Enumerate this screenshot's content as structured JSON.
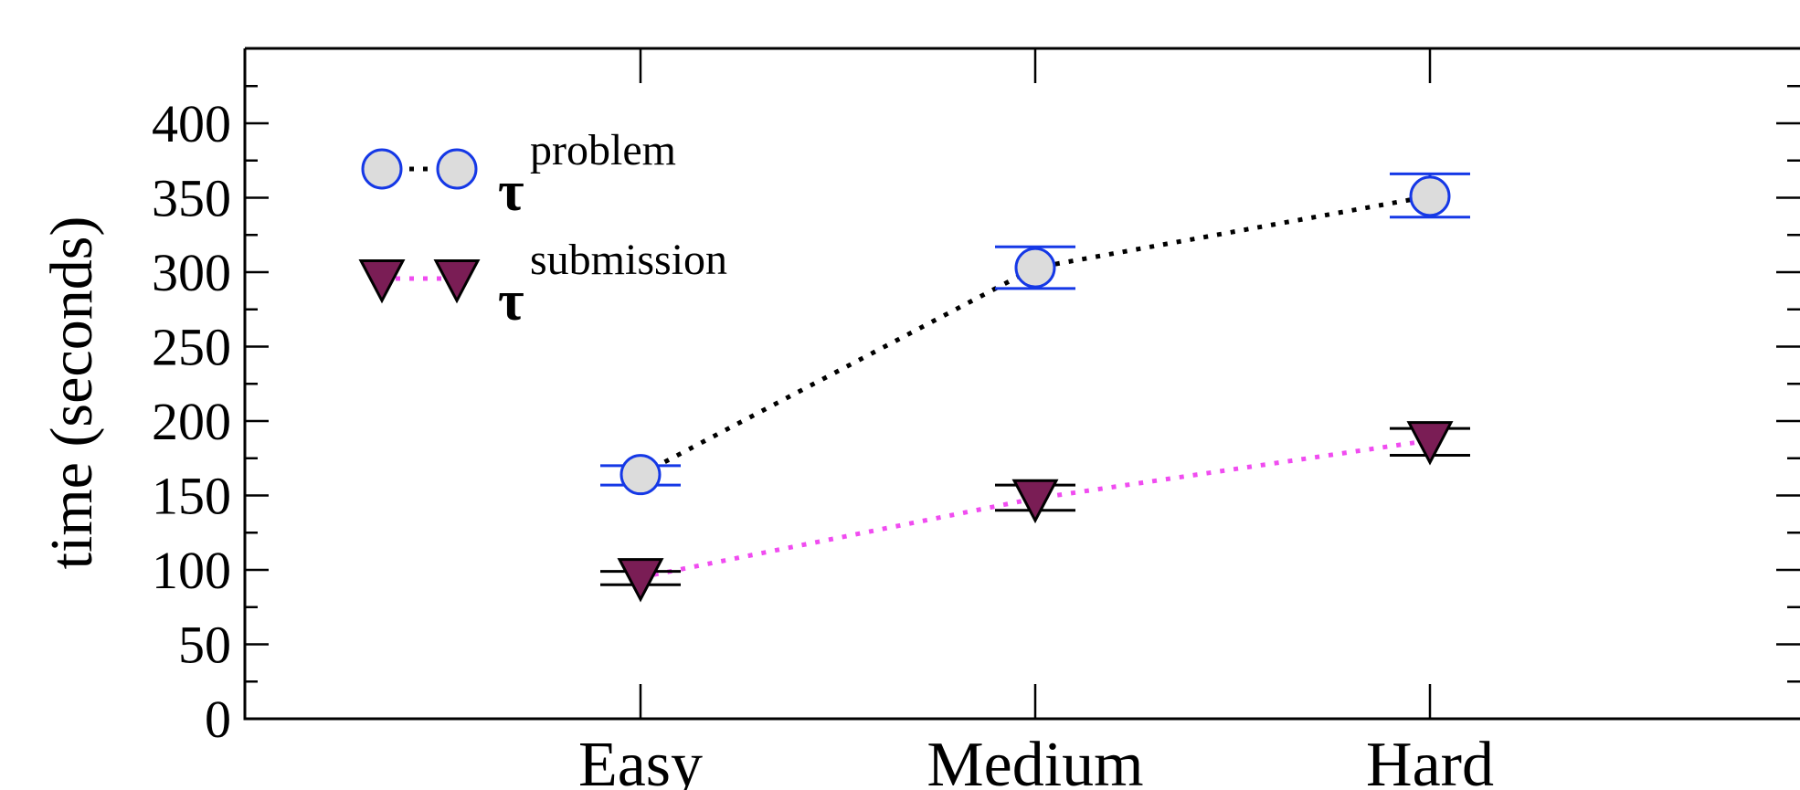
{
  "chart_data": {
    "type": "line",
    "categories": [
      "Easy",
      "Medium",
      "Hard"
    ],
    "ylabel": "time (seconds)",
    "xlabel": "",
    "title": "",
    "ylim": [
      0,
      450
    ],
    "yticks": [
      0,
      50,
      100,
      150,
      200,
      250,
      300,
      350,
      400
    ],
    "grid": false,
    "legend_position": "top-left",
    "series": [
      {
        "name": "problem",
        "legend_symbol": "τ",
        "values": [
          164,
          303,
          351
        ],
        "error_low": [
          157,
          289,
          337
        ],
        "error_high": [
          170,
          317,
          366
        ],
        "marker": "circle",
        "marker_fill": "#dcdcdc",
        "marker_edge": "#1538e6",
        "errorbar_color": "#1538e6",
        "line_color": "#000000",
        "line_style": "dotted"
      },
      {
        "name": "submission",
        "legend_symbol": "τ",
        "values": [
          95,
          148,
          187
        ],
        "error_low": [
          90,
          140,
          177
        ],
        "error_high": [
          99,
          157,
          195
        ],
        "marker": "triangle-down",
        "marker_fill": "#7a1d55",
        "marker_edge": "#000000",
        "errorbar_color": "#000000",
        "line_color": "#f04cf0",
        "line_style": "dotted"
      }
    ]
  }
}
